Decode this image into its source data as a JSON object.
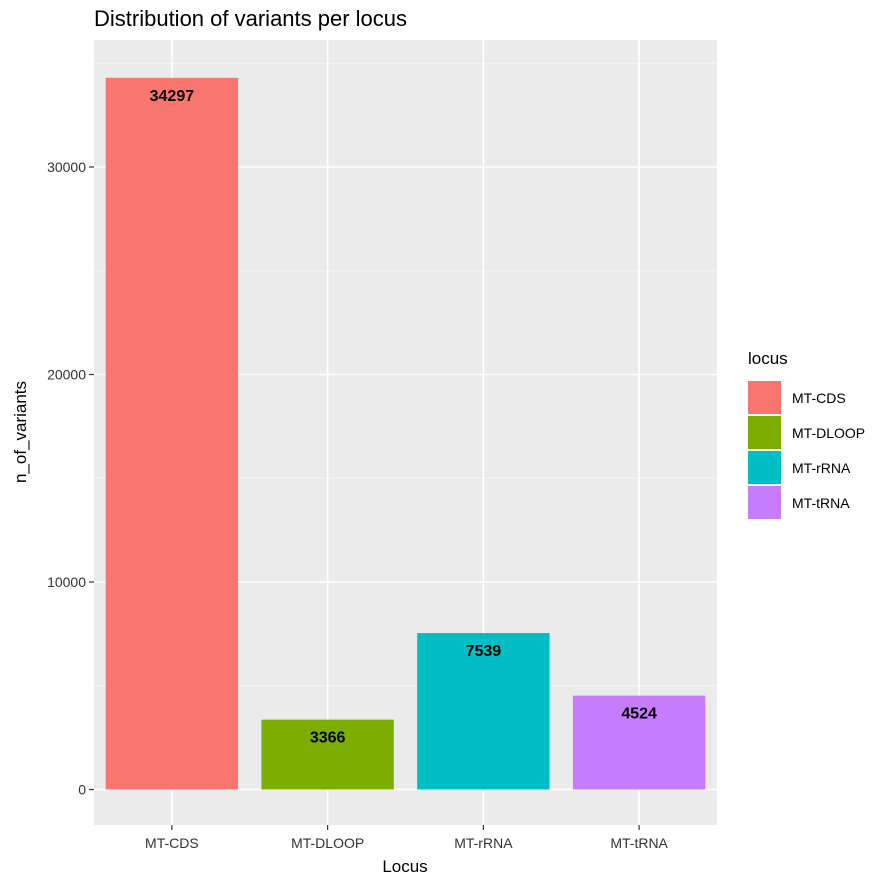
{
  "chart_data": {
    "type": "bar",
    "title": "Distribution of variants per locus",
    "xlabel": "Locus",
    "ylabel": "n_of_variants",
    "categories": [
      "MT-CDS",
      "MT-DLOOP",
      "MT-rRNA",
      "MT-tRNA"
    ],
    "values": [
      34297,
      3366,
      7539,
      4524
    ],
    "data_labels": [
      "34297",
      "3366",
      "7539",
      "4524"
    ],
    "colors": [
      "#F8766D",
      "#7CAE00",
      "#00BFC4",
      "#C77CFF"
    ],
    "ylim": [
      0,
      36000
    ],
    "yticks": [
      0,
      10000,
      20000,
      30000
    ],
    "ytick_labels": [
      "0",
      "10000",
      "20000",
      "30000"
    ],
    "grid": true,
    "panel_background": "#EBEBEB",
    "legend": {
      "title": "locus",
      "placement": "right",
      "entries": [
        "MT-CDS",
        "MT-DLOOP",
        "MT-rRNA",
        "MT-tRNA"
      ]
    }
  }
}
